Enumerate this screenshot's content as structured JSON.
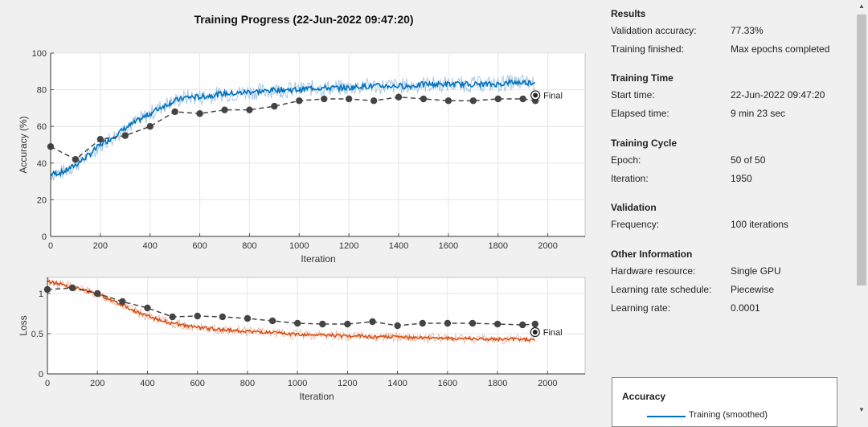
{
  "title": "Training Progress (22-Jun-2022 09:47:20)",
  "final_label": "Final",
  "colors": {
    "training_accuracy": "#0072bd",
    "training_accuracy_raw": "#a6c8e6",
    "training_loss": "#d95319",
    "training_loss_raw": "#eec0ad",
    "validation": "#444444"
  },
  "chart_data": [
    {
      "type": "line",
      "xlabel": "Iteration",
      "ylabel": "Accuracy (%)",
      "xlim": [
        0,
        2150
      ],
      "ylim": [
        0,
        100
      ],
      "xticks": [
        0,
        200,
        400,
        600,
        800,
        1000,
        1200,
        1400,
        1600,
        1800,
        2000
      ],
      "yticks": [
        0,
        20,
        40,
        60,
        80,
        100
      ],
      "grid": true,
      "series": [
        {
          "name": "Training (smoothed)",
          "x": [
            0,
            50,
            100,
            150,
            200,
            250,
            300,
            350,
            400,
            450,
            500,
            550,
            600,
            650,
            700,
            750,
            800,
            850,
            900,
            950,
            1000,
            1050,
            1100,
            1150,
            1200,
            1250,
            1300,
            1350,
            1400,
            1450,
            1500,
            1550,
            1600,
            1650,
            1700,
            1750,
            1800,
            1850,
            1900,
            1950
          ],
          "y": [
            34,
            35,
            39,
            44,
            50,
            54,
            59,
            63,
            67,
            71,
            74,
            76,
            76,
            77,
            78,
            78,
            79,
            79,
            80,
            80,
            80,
            81,
            81,
            81,
            81,
            82,
            82,
            82,
            82,
            82,
            83,
            83,
            83,
            83,
            83,
            83,
            83,
            84,
            84,
            84
          ]
        },
        {
          "name": "Validation",
          "x": [
            0,
            100,
            200,
            300,
            400,
            500,
            600,
            700,
            800,
            900,
            1000,
            1100,
            1200,
            1300,
            1400,
            1500,
            1600,
            1700,
            1800,
            1900,
            1950
          ],
          "y": [
            49,
            42,
            53,
            55,
            60,
            68,
            67,
            69,
            69,
            71,
            74,
            75,
            75,
            74,
            76,
            75,
            74,
            74,
            75,
            75,
            74
          ]
        }
      ],
      "final_point": {
        "x": 1950,
        "y": 77
      }
    },
    {
      "type": "line",
      "xlabel": "Iteration",
      "ylabel": "Loss",
      "xlim": [
        0,
        2150
      ],
      "ylim": [
        0,
        1.2
      ],
      "xticks": [
        0,
        200,
        400,
        600,
        800,
        1000,
        1200,
        1400,
        1600,
        1800,
        2000
      ],
      "yticks": [
        0,
        0.5,
        1
      ],
      "ytick_labels": [
        "0",
        "0.5",
        "1"
      ],
      "grid": true,
      "series": [
        {
          "name": "Training (smoothed)",
          "x": [
            0,
            50,
            100,
            150,
            200,
            250,
            300,
            350,
            400,
            450,
            500,
            550,
            600,
            650,
            700,
            750,
            800,
            850,
            900,
            950,
            1000,
            1050,
            1100,
            1150,
            1200,
            1250,
            1300,
            1350,
            1400,
            1450,
            1500,
            1550,
            1600,
            1650,
            1700,
            1750,
            1800,
            1850,
            1900,
            1950
          ],
          "y": [
            1.15,
            1.12,
            1.08,
            1.04,
            0.99,
            0.93,
            0.86,
            0.78,
            0.72,
            0.67,
            0.63,
            0.6,
            0.58,
            0.56,
            0.55,
            0.54,
            0.53,
            0.52,
            0.51,
            0.5,
            0.49,
            0.49,
            0.48,
            0.48,
            0.47,
            0.47,
            0.46,
            0.46,
            0.46,
            0.45,
            0.45,
            0.45,
            0.44,
            0.44,
            0.44,
            0.43,
            0.43,
            0.43,
            0.43,
            0.42
          ]
        },
        {
          "name": "Validation",
          "x": [
            0,
            100,
            200,
            300,
            400,
            500,
            600,
            700,
            800,
            900,
            1000,
            1100,
            1200,
            1300,
            1400,
            1500,
            1600,
            1700,
            1800,
            1900,
            1950
          ],
          "y": [
            1.05,
            1.07,
            1.0,
            0.9,
            0.82,
            0.71,
            0.72,
            0.71,
            0.69,
            0.66,
            0.63,
            0.62,
            0.62,
            0.65,
            0.6,
            0.63,
            0.63,
            0.63,
            0.62,
            0.61,
            0.62
          ]
        }
      ],
      "final_point": {
        "x": 1950,
        "y": 0.52
      }
    }
  ],
  "info": {
    "results": {
      "heading": "Results",
      "validation_accuracy_label": "Validation accuracy:",
      "validation_accuracy_value": "77.33%",
      "training_finished_label": "Training finished:",
      "training_finished_value": "Max epochs completed"
    },
    "training_time": {
      "heading": "Training Time",
      "start_time_label": "Start time:",
      "start_time_value": "22-Jun-2022 09:47:20",
      "elapsed_time_label": "Elapsed time:",
      "elapsed_time_value": "9 min 23 sec"
    },
    "training_cycle": {
      "heading": "Training Cycle",
      "epoch_label": "Epoch:",
      "epoch_value": "50 of 50",
      "iteration_label": "Iteration:",
      "iteration_value": "1950"
    },
    "validation": {
      "heading": "Validation",
      "frequency_label": "Frequency:",
      "frequency_value": "100 iterations"
    },
    "other": {
      "heading": "Other Information",
      "hardware_label": "Hardware resource:",
      "hardware_value": "Single GPU",
      "lr_schedule_label": "Learning rate schedule:",
      "lr_schedule_value": "Piecewise",
      "lr_label": "Learning rate:",
      "lr_value": "0.0001"
    }
  },
  "legend": {
    "title": "Accuracy",
    "entry": "Training (smoothed)"
  }
}
